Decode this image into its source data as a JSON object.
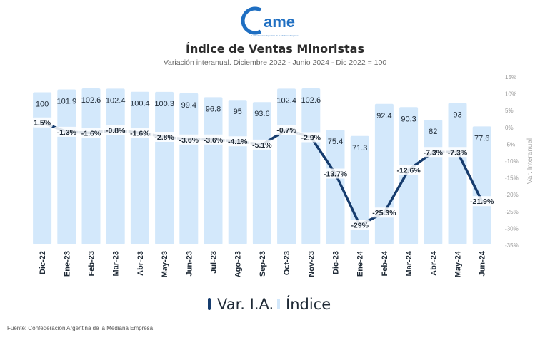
{
  "header": {
    "logo_text": "ame",
    "logo_tagline": "La Federación Argentina de la Mediana Empresa",
    "title": "Índice de Ventas Minoristas",
    "subtitle": "Variación interanual. Diciembre 2022 - Junio 2024 - Dic 2022 = 100"
  },
  "footer": {
    "source": "Fuente: Confederación Argentina de la Mediana Empresa"
  },
  "colors": {
    "bar": "#d3e8fb",
    "line": "#163c6e",
    "logo": "#1f6fc2"
  },
  "chart_data": {
    "type": "bar",
    "categories": [
      "Dic-22",
      "Ene-23",
      "Feb-23",
      "Mar-23",
      "Abr-23",
      "May-23",
      "Jun-23",
      "Jul-23",
      "Ago-23",
      "Sep-23",
      "Oct-23",
      "Nov-23",
      "Dic-23",
      "Ene-24",
      "Feb-24",
      "Mar-24",
      "Abr-24",
      "May-24",
      "Jun-24"
    ],
    "series": [
      {
        "name": "Índice",
        "type": "bar",
        "values": [
          100,
          101.9,
          102.6,
          102.4,
          100.4,
          100.3,
          99.4,
          96.8,
          95,
          93.6,
          102.4,
          102.6,
          75.4,
          71.3,
          92.4,
          90.3,
          82,
          93,
          77.6
        ],
        "labels": [
          "100",
          "101.9",
          "102.6",
          "102.4",
          "100.4",
          "100.3",
          "99.4",
          "96.8",
          "95",
          "93.6",
          "102.4",
          "102.6",
          "75.4",
          "71.3",
          "92.4",
          "90.3",
          "82",
          "93",
          "77.6"
        ]
      },
      {
        "name": "Var. I.A.",
        "type": "line",
        "axis": "right",
        "values": [
          1.5,
          -1.3,
          -1.6,
          -0.8,
          -1.6,
          -2.8,
          -3.6,
          -3.6,
          -4.1,
          -5.1,
          -0.7,
          -2.9,
          -13.7,
          -29,
          -25.3,
          -12.6,
          -7.3,
          -7.3,
          -21.9
        ],
        "labels": [
          "1.5%",
          "-1.3%",
          "-1.6%",
          "-0.8%",
          "-1.6%",
          "-2.8%",
          "-3.6%",
          "-3.6%",
          "-4.1%",
          "-5.1%",
          "-0.7%",
          "-2.9%",
          "-13.7%",
          "-29%",
          "-25.3%",
          "-12.6%",
          "-7.3%",
          "-7.3%",
          "-21.9%"
        ]
      }
    ],
    "y2label": "Var. Interanual",
    "y2lim": [
      -35,
      15
    ],
    "y2ticks": [
      15,
      10,
      5,
      0,
      -5,
      -10,
      -15,
      -20,
      -25,
      -30,
      -35
    ],
    "y2tick_labels": [
      "15%",
      "10%",
      "5%",
      "0%",
      "-5%",
      "-10%",
      "-15%",
      "-20%",
      "-25%",
      "-30%",
      "-35%"
    ],
    "legend": {
      "placement": "bottom",
      "entries": [
        "Var. I.A.",
        "Índice"
      ]
    },
    "grid": false
  }
}
